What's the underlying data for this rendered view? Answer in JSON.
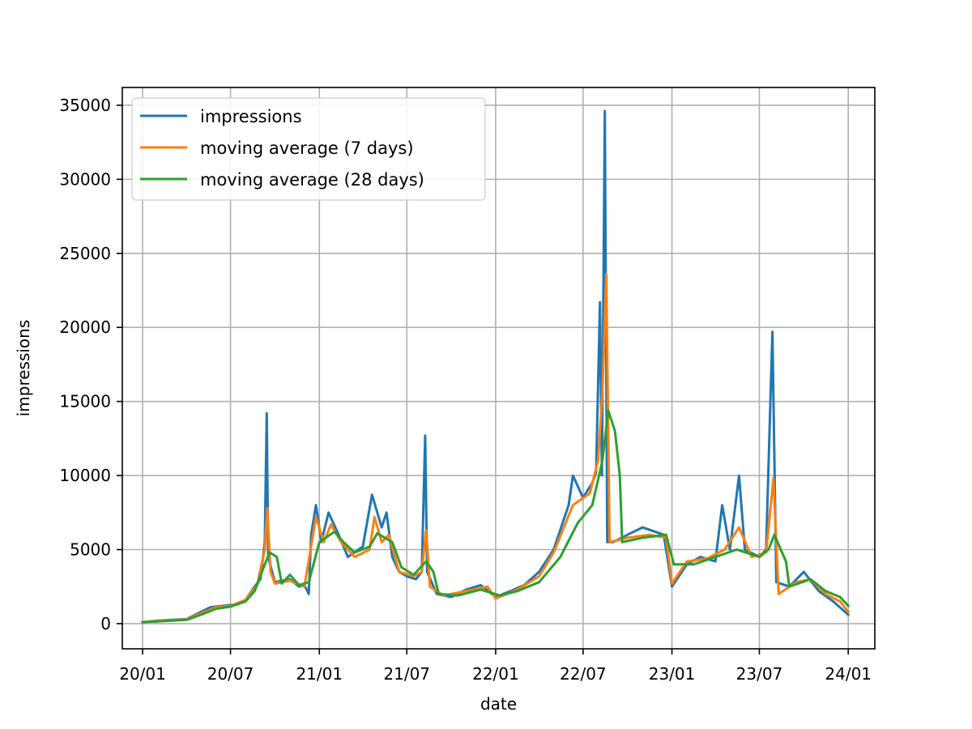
{
  "chart_data": {
    "type": "line",
    "xlabel": "date",
    "ylabel": "impressions",
    "grid": true,
    "legend_position": "upper-left",
    "xlim": [
      "2019-11-20",
      "2024-02-25"
    ],
    "ylim": [
      -1700,
      36200
    ],
    "x_ticks": [
      {
        "date": "2020-01-01",
        "label": "20/01"
      },
      {
        "date": "2020-07-01",
        "label": "20/07"
      },
      {
        "date": "2021-01-01",
        "label": "21/01"
      },
      {
        "date": "2021-07-01",
        "label": "21/07"
      },
      {
        "date": "2022-01-01",
        "label": "22/01"
      },
      {
        "date": "2022-07-01",
        "label": "22/07"
      },
      {
        "date": "2023-01-01",
        "label": "23/01"
      },
      {
        "date": "2023-07-01",
        "label": "23/07"
      },
      {
        "date": "2024-01-01",
        "label": "24/01"
      }
    ],
    "y_ticks": [
      {
        "value": 0,
        "label": "0"
      },
      {
        "value": 5000,
        "label": "5000"
      },
      {
        "value": 10000,
        "label": "10000"
      },
      {
        "value": 15000,
        "label": "15000"
      },
      {
        "value": 20000,
        "label": "20000"
      },
      {
        "value": 25000,
        "label": "25000"
      },
      {
        "value": 30000,
        "label": "30000"
      },
      {
        "value": 35000,
        "label": "35000"
      }
    ],
    "series": [
      {
        "name": "impressions",
        "color": "#1f77b4",
        "points": [
          [
            "2020-01-01",
            100
          ],
          [
            "2020-01-15",
            150
          ],
          [
            "2020-02-01",
            200
          ],
          [
            "2020-03-01",
            250
          ],
          [
            "2020-04-01",
            300
          ],
          [
            "2020-05-01",
            800
          ],
          [
            "2020-05-20",
            1100
          ],
          [
            "2020-06-15",
            1200
          ],
          [
            "2020-07-15",
            1300
          ],
          [
            "2020-08-01",
            1600
          ],
          [
            "2020-08-20",
            2500
          ],
          [
            "2020-09-01",
            3000
          ],
          [
            "2020-09-10",
            5500
          ],
          [
            "2020-09-14",
            14200
          ],
          [
            "2020-09-17",
            4500
          ],
          [
            "2020-10-01",
            2800
          ],
          [
            "2020-11-01",
            3000
          ],
          [
            "2020-11-20",
            2500
          ],
          [
            "2020-12-01",
            2600
          ],
          [
            "2020-12-10",
            2000
          ],
          [
            "2020-12-15",
            6000
          ],
          [
            "2020-12-25",
            8000
          ],
          [
            "2021-01-05",
            5500
          ],
          [
            "2021-01-20",
            7500
          ],
          [
            "2021-02-10",
            6000
          ],
          [
            "2021-03-01",
            4500
          ],
          [
            "2021-04-01",
            5200
          ],
          [
            "2021-04-20",
            8700
          ],
          [
            "2021-05-10",
            6500
          ],
          [
            "2021-05-20",
            7500
          ],
          [
            "2021-06-01",
            4500
          ],
          [
            "2021-06-15",
            3500
          ],
          [
            "2021-07-01",
            3200
          ],
          [
            "2021-07-20",
            3000
          ],
          [
            "2021-08-01",
            3500
          ],
          [
            "2021-08-08",
            12700
          ],
          [
            "2021-08-12",
            3500
          ],
          [
            "2021-09-01",
            2000
          ],
          [
            "2021-10-01",
            1800
          ],
          [
            "2021-11-01",
            2300
          ],
          [
            "2021-12-01",
            2600
          ],
          [
            "2022-01-01",
            1800
          ],
          [
            "2022-02-01",
            2200
          ],
          [
            "2022-03-01",
            2600
          ],
          [
            "2022-04-01",
            3500
          ],
          [
            "2022-05-01",
            5000
          ],
          [
            "2022-06-01",
            8000
          ],
          [
            "2022-06-10",
            10000
          ],
          [
            "2022-07-01",
            8500
          ],
          [
            "2022-07-20",
            9500
          ],
          [
            "2022-07-28",
            10200
          ],
          [
            "2022-08-05",
            21700
          ],
          [
            "2022-08-09",
            10000
          ],
          [
            "2022-08-15",
            34600
          ],
          [
            "2022-08-20",
            5500
          ],
          [
            "2022-09-01",
            5500
          ],
          [
            "2022-10-01",
            6000
          ],
          [
            "2022-11-01",
            6500
          ],
          [
            "2022-12-15",
            6000
          ],
          [
            "2023-01-01",
            2500
          ],
          [
            "2023-02-01",
            4000
          ],
          [
            "2023-03-01",
            4500
          ],
          [
            "2023-04-01",
            4200
          ],
          [
            "2023-04-15",
            8000
          ],
          [
            "2023-05-01",
            5000
          ],
          [
            "2023-05-20",
            10000
          ],
          [
            "2023-06-01",
            5000
          ],
          [
            "2023-07-01",
            4500
          ],
          [
            "2023-07-15",
            5000
          ],
          [
            "2023-07-28",
            19700
          ],
          [
            "2023-08-05",
            2800
          ],
          [
            "2023-09-01",
            2500
          ],
          [
            "2023-10-01",
            3500
          ],
          [
            "2023-11-01",
            2200
          ],
          [
            "2023-12-01",
            1500
          ],
          [
            "2024-01-01",
            600
          ]
        ]
      },
      {
        "name": "moving average (7 days)",
        "color": "#ff7f0e",
        "points": [
          [
            "2020-01-01",
            100
          ],
          [
            "2020-02-01",
            180
          ],
          [
            "2020-03-01",
            230
          ],
          [
            "2020-04-01",
            280
          ],
          [
            "2020-05-01",
            700
          ],
          [
            "2020-06-01",
            1100
          ],
          [
            "2020-07-01",
            1200
          ],
          [
            "2020-08-01",
            1600
          ],
          [
            "2020-08-25",
            2600
          ],
          [
            "2020-09-10",
            5000
          ],
          [
            "2020-09-15",
            7800
          ],
          [
            "2020-09-22",
            3500
          ],
          [
            "2020-10-01",
            2700
          ],
          [
            "2020-11-01",
            2900
          ],
          [
            "2020-12-01",
            2500
          ],
          [
            "2020-12-25",
            7200
          ],
          [
            "2021-01-10",
            5500
          ],
          [
            "2021-01-25",
            6700
          ],
          [
            "2021-02-15",
            5500
          ],
          [
            "2021-03-15",
            4500
          ],
          [
            "2021-04-15",
            5000
          ],
          [
            "2021-04-25",
            7200
          ],
          [
            "2021-05-10",
            5500
          ],
          [
            "2021-05-25",
            6000
          ],
          [
            "2021-06-15",
            3500
          ],
          [
            "2021-07-15",
            3200
          ],
          [
            "2021-08-01",
            3500
          ],
          [
            "2021-08-10",
            6300
          ],
          [
            "2021-08-18",
            2500
          ],
          [
            "2021-09-15",
            1900
          ],
          [
            "2021-11-01",
            2200
          ],
          [
            "2021-12-15",
            2500
          ],
          [
            "2022-01-01",
            1700
          ],
          [
            "2022-02-15",
            2300
          ],
          [
            "2022-04-01",
            3200
          ],
          [
            "2022-05-01",
            4800
          ],
          [
            "2022-06-10",
            8000
          ],
          [
            "2022-07-15",
            8800
          ],
          [
            "2022-08-01",
            11000
          ],
          [
            "2022-08-10",
            15500
          ],
          [
            "2022-08-18",
            23600
          ],
          [
            "2022-08-25",
            5500
          ],
          [
            "2022-10-01",
            5800
          ],
          [
            "2022-11-15",
            6000
          ],
          [
            "2022-12-20",
            5800
          ],
          [
            "2023-01-01",
            2700
          ],
          [
            "2023-02-01",
            4200
          ],
          [
            "2023-03-15",
            4400
          ],
          [
            "2023-04-20",
            5000
          ],
          [
            "2023-05-20",
            6500
          ],
          [
            "2023-06-15",
            4500
          ],
          [
            "2023-07-15",
            4800
          ],
          [
            "2023-07-30",
            9800
          ],
          [
            "2023-08-10",
            2000
          ],
          [
            "2023-09-15",
            2800
          ],
          [
            "2023-10-15",
            3000
          ],
          [
            "2023-11-15",
            2000
          ],
          [
            "2023-12-15",
            1500
          ],
          [
            "2024-01-01",
            800
          ]
        ]
      },
      {
        "name": "moving average (28 days)",
        "color": "#2ca02c",
        "points": [
          [
            "2020-01-01",
            100
          ],
          [
            "2020-02-01",
            150
          ],
          [
            "2020-03-01",
            200
          ],
          [
            "2020-04-01",
            250
          ],
          [
            "2020-05-01",
            600
          ],
          [
            "2020-06-01",
            1000
          ],
          [
            "2020-07-01",
            1150
          ],
          [
            "2020-08-01",
            1500
          ],
          [
            "2020-08-20",
            2200
          ],
          [
            "2020-09-10",
            4000
          ],
          [
            "2020-09-20",
            4800
          ],
          [
            "2020-10-05",
            4500
          ],
          [
            "2020-10-15",
            2700
          ],
          [
            "2020-11-01",
            3300
          ],
          [
            "2020-11-20",
            2600
          ],
          [
            "2020-12-10",
            2800
          ],
          [
            "2021-01-01",
            5500
          ],
          [
            "2021-02-01",
            6200
          ],
          [
            "2021-02-20",
            5500
          ],
          [
            "2021-03-15",
            4800
          ],
          [
            "2021-04-15",
            5200
          ],
          [
            "2021-05-01",
            6100
          ],
          [
            "2021-06-01",
            5500
          ],
          [
            "2021-06-20",
            3800
          ],
          [
            "2021-07-15",
            3300
          ],
          [
            "2021-08-10",
            4200
          ],
          [
            "2021-08-25",
            3500
          ],
          [
            "2021-09-05",
            2000
          ],
          [
            "2021-10-15",
            1900
          ],
          [
            "2021-12-01",
            2300
          ],
          [
            "2022-01-10",
            1900
          ],
          [
            "2022-02-15",
            2200
          ],
          [
            "2022-04-01",
            2800
          ],
          [
            "2022-05-15",
            4500
          ],
          [
            "2022-06-20",
            6800
          ],
          [
            "2022-07-20",
            8000
          ],
          [
            "2022-08-10",
            11000
          ],
          [
            "2022-08-22",
            14400
          ],
          [
            "2022-09-05",
            13000
          ],
          [
            "2022-09-15",
            10000
          ],
          [
            "2022-09-20",
            5500
          ],
          [
            "2022-11-01",
            5800
          ],
          [
            "2022-12-20",
            6000
          ],
          [
            "2023-01-05",
            4000
          ],
          [
            "2023-02-15",
            4000
          ],
          [
            "2023-04-01",
            4500
          ],
          [
            "2023-05-15",
            5000
          ],
          [
            "2023-07-01",
            4500
          ],
          [
            "2023-07-20",
            5000
          ],
          [
            "2023-08-01",
            6000
          ],
          [
            "2023-08-25",
            4200
          ],
          [
            "2023-09-01",
            2500
          ],
          [
            "2023-10-15",
            3000
          ],
          [
            "2023-11-15",
            2200
          ],
          [
            "2023-12-15",
            1800
          ],
          [
            "2024-01-01",
            1200
          ]
        ]
      }
    ]
  }
}
